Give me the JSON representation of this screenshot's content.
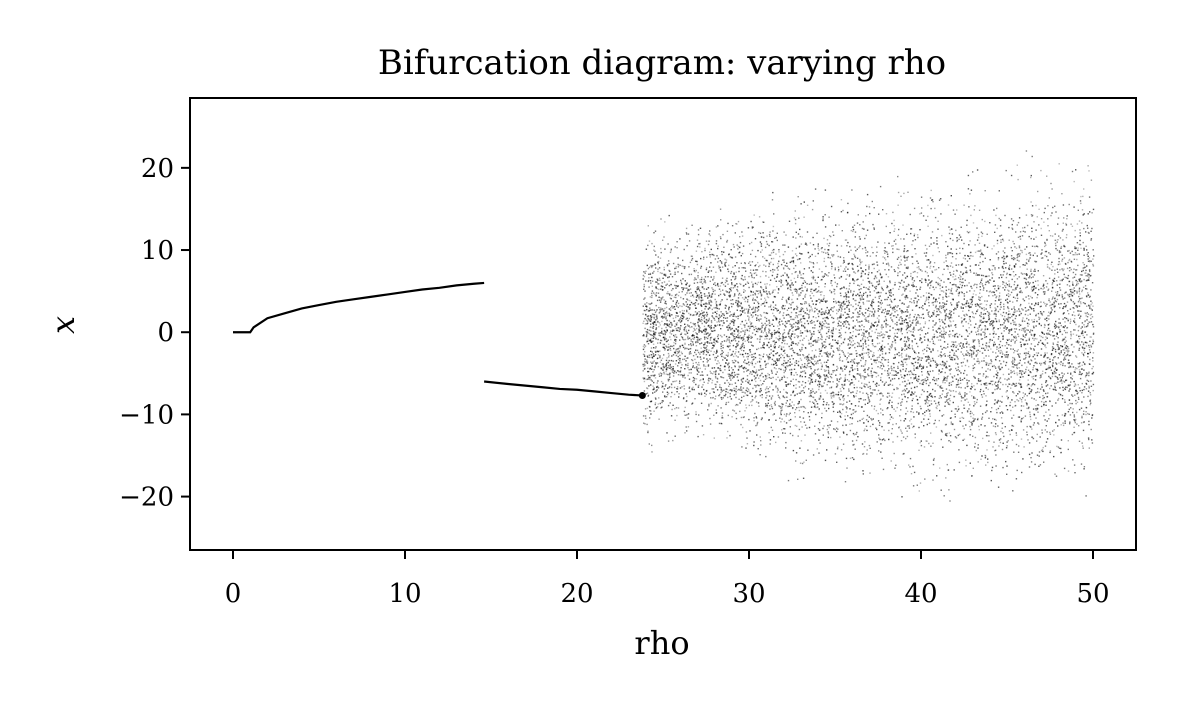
{
  "chart_data": {
    "type": "scatter",
    "title": "Bifurcation diagram: varying rho",
    "xlabel": "rho",
    "ylabel": "x",
    "xlim": [
      -2.5,
      52.5
    ],
    "ylim": [
      -26.5,
      28.5
    ],
    "x_ticks": [
      0,
      10,
      20,
      30,
      40,
      50
    ],
    "y_ticks": [
      -20,
      -10,
      0,
      10,
      20
    ],
    "x_tick_labels": [
      "0",
      "10",
      "20",
      "30",
      "40",
      "50"
    ],
    "y_tick_labels": [
      "−20",
      "−10",
      "0",
      "10",
      "20"
    ],
    "grid": false,
    "legend": "none",
    "point_color": "#000000",
    "series": [
      {
        "points": [
          [
            0,
            0
          ],
          [
            0.5,
            0
          ],
          [
            1,
            0
          ],
          [
            1.2,
            0.6
          ],
          [
            2,
            1.7
          ],
          [
            3,
            2.3
          ],
          [
            4,
            2.9
          ],
          [
            5,
            3.3
          ],
          [
            6,
            3.7
          ],
          [
            7,
            4.0
          ],
          [
            8,
            4.3
          ],
          [
            9,
            4.6
          ],
          [
            10,
            4.9
          ],
          [
            11,
            5.2
          ],
          [
            12,
            5.4
          ],
          [
            13,
            5.7
          ],
          [
            14,
            5.9
          ],
          [
            14.6,
            6.0
          ]
        ]
      },
      {
        "points": [
          [
            14.6,
            -6.0
          ],
          [
            16,
            -6.3
          ],
          [
            17,
            -6.5
          ],
          [
            18,
            -6.7
          ],
          [
            19,
            -6.9
          ],
          [
            20,
            -7.0
          ],
          [
            21,
            -7.2
          ],
          [
            22,
            -7.4
          ],
          [
            23,
            -7.6
          ],
          [
            23.8,
            -7.7
          ]
        ]
      }
    ],
    "chaotic_region": {
      "x_range": [
        23.8,
        50
      ],
      "y_envelope": [
        [
          24,
          -16,
          15
        ],
        [
          27,
          -16,
          17
        ],
        [
          30,
          -18,
          18
        ],
        [
          35,
          -20,
          20
        ],
        [
          40,
          -22,
          21
        ],
        [
          45,
          -23,
          23
        ],
        [
          50,
          -23,
          25
        ]
      ]
    }
  }
}
